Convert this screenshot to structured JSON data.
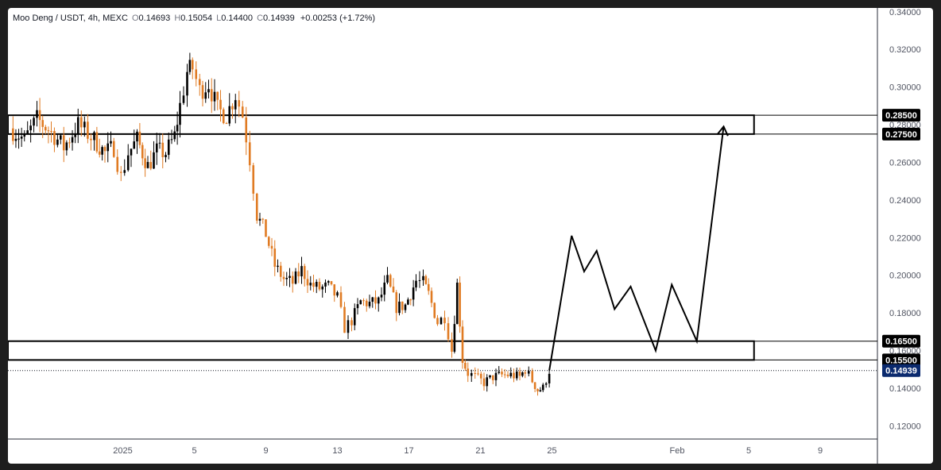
{
  "header": {
    "symbol": "Moo Deng / USDT, 4h, MEXC",
    "open_label": "O",
    "open": "0.14693",
    "high_label": "H",
    "high": "0.15054",
    "low_label": "L",
    "low": "0.14400",
    "close_label": "C",
    "close": "0.14939",
    "change": "+0.00253 (+1.72%)"
  },
  "colors": {
    "up": "#000000",
    "down": "#e07b23",
    "last_price_badge": "#0b2a6e",
    "level_badge": "#000000",
    "projection": "#000000"
  },
  "chart_data": {
    "type": "candlestick",
    "title": "Moo Deng / USDT, 4h, MEXC",
    "y_axis": {
      "ticks": [
        "0.34000",
        "0.32000",
        "0.30000",
        "0.28000",
        "0.26000",
        "0.24000",
        "0.22000",
        "0.20000",
        "0.18000",
        "0.16000",
        "0.14000",
        "0.12000"
      ],
      "tick_values": [
        0.34,
        0.32,
        0.3,
        0.28,
        0.26,
        0.24,
        0.22,
        0.2,
        0.18,
        0.16,
        0.14,
        0.12
      ],
      "ylim": [
        0.113,
        0.342
      ],
      "position": "right"
    },
    "x_axis": {
      "ticks": [
        "2025",
        "5",
        "9",
        "13",
        "17",
        "21",
        "25",
        "Feb",
        "5",
        "9"
      ],
      "tick_days": [
        1,
        5,
        9,
        13,
        17,
        21,
        25,
        32,
        36,
        40
      ],
      "unit": "day index from 2025-01-01 = 1"
    },
    "price_badges": [
      {
        "label": "0.28500",
        "value": 0.285,
        "kind": "level"
      },
      {
        "label": "0.27500",
        "value": 0.275,
        "kind": "level"
      },
      {
        "label": "0.16500",
        "value": 0.165,
        "kind": "level"
      },
      {
        "label": "0.15500",
        "value": 0.155,
        "kind": "level"
      },
      {
        "label": "0.14939",
        "value": 0.14939,
        "kind": "last"
      }
    ],
    "zones": [
      {
        "name": "resistance zone",
        "low": 0.275,
        "high": 0.285,
        "from_day": -5.5,
        "to_day": 36.3,
        "line_extends_to_axis": true
      },
      {
        "name": "support zone",
        "low": 0.155,
        "high": 0.165,
        "from_day": -5.5,
        "to_day": 36.3,
        "line_extends_to_axis": true
      }
    ],
    "candle_anchors": [
      [
        -5.3,
        0.278
      ],
      [
        -4.5,
        0.272
      ],
      [
        -3.8,
        0.283
      ],
      [
        -3.0,
        0.276
      ],
      [
        -2.3,
        0.268
      ],
      [
        -1.5,
        0.28
      ],
      [
        -0.6,
        0.272
      ],
      [
        0.0,
        0.265
      ],
      [
        0.5,
        0.268
      ],
      [
        0.9,
        0.252
      ],
      [
        1.3,
        0.265
      ],
      [
        1.8,
        0.272
      ],
      [
        2.4,
        0.258
      ],
      [
        2.9,
        0.266
      ],
      [
        3.4,
        0.265
      ],
      [
        3.9,
        0.274
      ],
      [
        4.2,
        0.29
      ],
      [
        4.6,
        0.308
      ],
      [
        4.9,
        0.31
      ],
      [
        5.3,
        0.298
      ],
      [
        5.8,
        0.302
      ],
      [
        6.3,
        0.288
      ],
      [
        6.8,
        0.285
      ],
      [
        7.3,
        0.296
      ],
      [
        7.7,
        0.285
      ],
      [
        8.1,
        0.262
      ],
      [
        8.5,
        0.232
      ],
      [
        9.0,
        0.222
      ],
      [
        9.5,
        0.205
      ],
      [
        10.0,
        0.198
      ],
      [
        10.5,
        0.196
      ],
      [
        11.0,
        0.203
      ],
      [
        11.5,
        0.195
      ],
      [
        12.0,
        0.193
      ],
      [
        12.5,
        0.194
      ],
      [
        13.0,
        0.188
      ],
      [
        13.4,
        0.172
      ],
      [
        13.8,
        0.176
      ],
      [
        14.3,
        0.186
      ],
      [
        14.8,
        0.185
      ],
      [
        15.3,
        0.186
      ],
      [
        15.8,
        0.197
      ],
      [
        16.3,
        0.183
      ],
      [
        16.8,
        0.184
      ],
      [
        17.4,
        0.197
      ],
      [
        17.8,
        0.196
      ],
      [
        18.1,
        0.19
      ],
      [
        18.6,
        0.175
      ],
      [
        19.0,
        0.178
      ],
      [
        19.4,
        0.16
      ],
      [
        19.7,
        0.195
      ],
      [
        20.0,
        0.155
      ],
      [
        20.3,
        0.148
      ],
      [
        20.7,
        0.146
      ],
      [
        21.2,
        0.143
      ],
      [
        21.7,
        0.146
      ],
      [
        22.2,
        0.147
      ],
      [
        22.7,
        0.147
      ],
      [
        23.2,
        0.146
      ],
      [
        23.5,
        0.15
      ],
      [
        23.9,
        0.144
      ],
      [
        24.2,
        0.139
      ],
      [
        24.5,
        0.14
      ],
      [
        24.85,
        0.1494
      ]
    ],
    "projection": {
      "points": [
        [
          24.85,
          0.1494
        ],
        [
          26.1,
          0.221
        ],
        [
          26.8,
          0.202
        ],
        [
          27.5,
          0.213
        ],
        [
          28.5,
          0.182
        ],
        [
          29.4,
          0.194
        ],
        [
          30.8,
          0.16
        ],
        [
          31.7,
          0.195
        ],
        [
          33.1,
          0.165
        ],
        [
          34.6,
          0.279
        ]
      ],
      "arrow_at_end": true
    }
  }
}
